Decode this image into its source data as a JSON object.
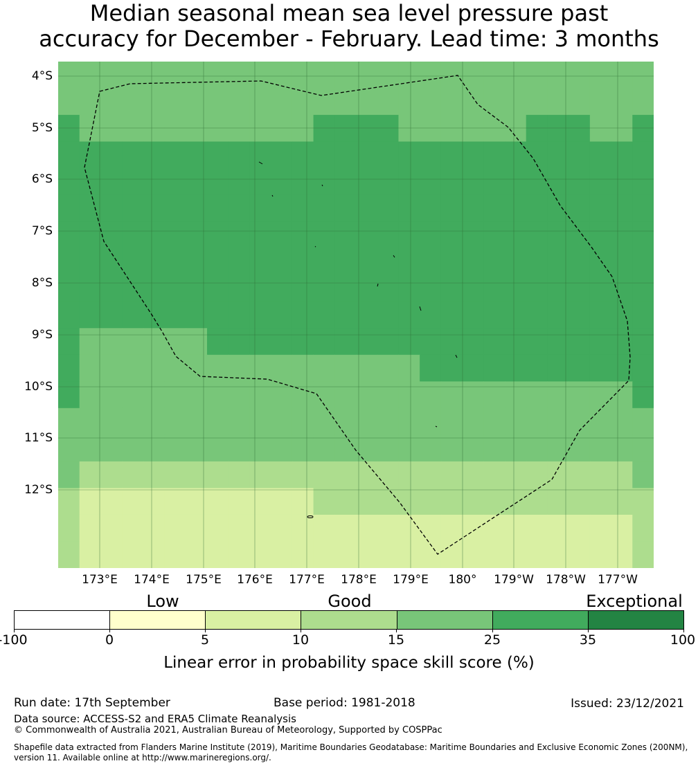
{
  "title": {
    "line1": "Median seasonal mean sea level pressure past",
    "line2": "accuracy for December - February. Lead time: 3 months"
  },
  "map": {
    "lat_labels": [
      "4°S",
      "5°S",
      "6°S",
      "7°S",
      "8°S",
      "9°S",
      "10°S",
      "11°S",
      "12°S"
    ],
    "lon_labels": [
      "173°E",
      "174°E",
      "175°E",
      "176°E",
      "177°E",
      "178°E",
      "179°E",
      "180°",
      "179°W",
      "178°W",
      "177°W"
    ],
    "skill_categories_grid": {
      "legend": "1 = 0-5 (light yellow), 2 = 5-10, 3 = 10-15, 4 = 15-25, 5 = 25-35",
      "rows_north_to_south": [
        "4444444444444444444444444444",
        "4444444444444444444444444444",
        "5444444444445555444444555445",
        "5555555555555555555555555555",
        "5555555555555555555555555555",
        "5555555555555555555555555555",
        "5555555555555555555555555555",
        "5555555555555555555555555555",
        "5555555555555555555555555555",
        "5555555555555555555555555555",
        "5444444555555555555555555555",
        "5444444444444444455555555555",
        "5444444444444444444444444445",
        "4444444444444444444444444444",
        "4444444444444444444444444444",
        "4333333333333333333333333334",
        "3222222222223333333333333333",
        "3222222222222222222222222223",
        "3222222222222222222222222223"
      ]
    }
  },
  "colorbar": {
    "category_labels": [
      "Low",
      "Good",
      "Exceptional"
    ],
    "tick_labels": [
      "-100",
      "0",
      "5",
      "10",
      "15",
      "25",
      "35",
      "100"
    ],
    "colors": [
      "#ffffff",
      "#ffffcc",
      "#d9f0a3",
      "#addd8e",
      "#78c679",
      "#41ab5d",
      "#238443"
    ],
    "label": "Linear error in probability space skill score (%)"
  },
  "footer": {
    "run_date": "Run date: 17th September",
    "base_period": "Base period: 1981-2018",
    "issued": "Issued: 23/12/2021",
    "data_source": "Data source: ACCESS-S2 and ERA5 Climate Reanalysis",
    "copyright": "© Commonwealth of Australia 2021, Australian Bureau of Meteorology, Supported by COSPPac",
    "shapefile_line1": "Shapefile data extracted from Flanders Marine Institute (2019), Maritime Boundaries Geodatabase: Maritime Boundaries and Exclusive Economic Zones (200NM),",
    "shapefile_line2": "version 11. Available online at http://www.marineregions.org/."
  }
}
